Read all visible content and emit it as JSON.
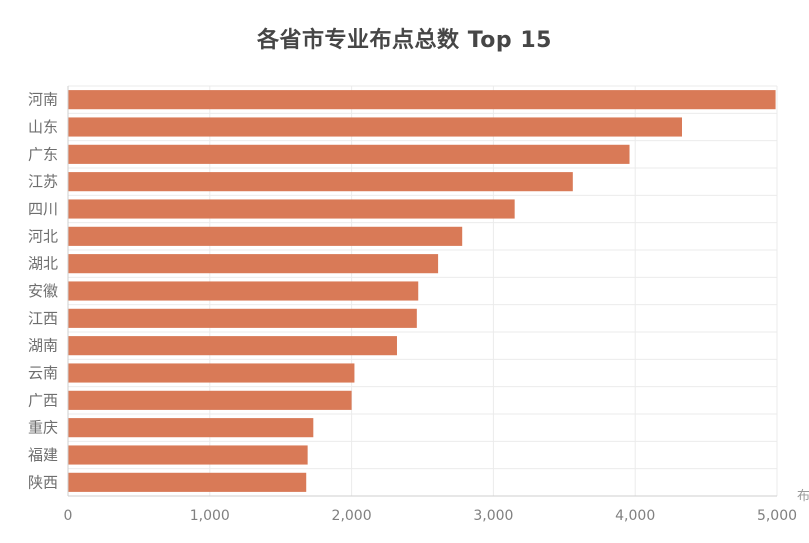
{
  "chart_data": {
    "type": "bar",
    "orientation": "horizontal",
    "title": "各省市专业布点总数 Top 15",
    "xlabel": "布点总数",
    "ylabel": "",
    "categories": [
      "河南",
      "山东",
      "广东",
      "江苏",
      "四川",
      "河北",
      "湖北",
      "安徽",
      "江西",
      "湖南",
      "云南",
      "广西",
      "重庆",
      "福建",
      "陕西"
    ],
    "values": [
      4990,
      4330,
      3960,
      3560,
      3150,
      2780,
      2610,
      2470,
      2460,
      2320,
      2020,
      2000,
      1730,
      1690,
      1680
    ],
    "xlim": [
      0,
      5000
    ],
    "xticks": [
      0,
      1000,
      2000,
      3000,
      4000,
      5000
    ],
    "xtick_labels": [
      "0",
      "1,000",
      "2,000",
      "3,000",
      "4,000",
      "5,000"
    ],
    "grid": true,
    "colors": {
      "bar": "#D97A57",
      "grid": "#EBEBEB",
      "axis": "#CFCFCF",
      "tick_text": "#808080",
      "category_text": "#6E6E6E",
      "title_text": "#464646"
    }
  }
}
